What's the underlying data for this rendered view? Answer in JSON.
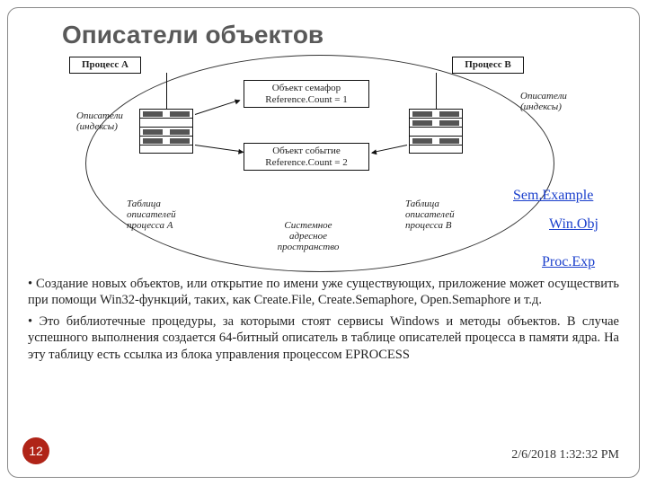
{
  "title": "Описатели объектов",
  "diagram": {
    "proc_a": "Процесс А",
    "proc_b": "Процесс В",
    "desc_a": "Описатели\n(индексы)",
    "desc_b": "Описатели\n(индексы)",
    "sem_box_l1": "Объект семафор",
    "sem_box_l2": "Reference.Count = 1",
    "evt_box_l1": "Объект событие",
    "evt_box_l2": "Reference.Count = 2",
    "table_a": "Таблица\nописателей\nпроцесса А",
    "table_b": "Таблица\nописателей\nпроцесса В",
    "addrspace": "Системное\nадресное\nпространство"
  },
  "links": {
    "sem": "Sem.Example",
    "winobj": "Win.Obj",
    "procexp": "Proc.Exp"
  },
  "body": {
    "p1": "• Создание новых объектов, или открытие по имени уже существующих, приложение может осуществить при помощи Win32-функций, таких, как Create.File, Create.Semaphore, Open.Semaphore и т.д.",
    "p2": "• Это библиотечные процедуры, за которыми стоят сервисы Windows и методы объектов. В случае успешного выполнения создается 64-битный описатель в таблице описателей процесса в памяти ядра. На эту таблицу есть ссылка из блока управления процессом EPROCESS"
  },
  "footer": {
    "page": "12",
    "timestamp": "2/6/2018 1:32:32 PM"
  },
  "colors": {
    "title": "#595959",
    "link": "#1a3fcc",
    "badge": "#b02418"
  }
}
